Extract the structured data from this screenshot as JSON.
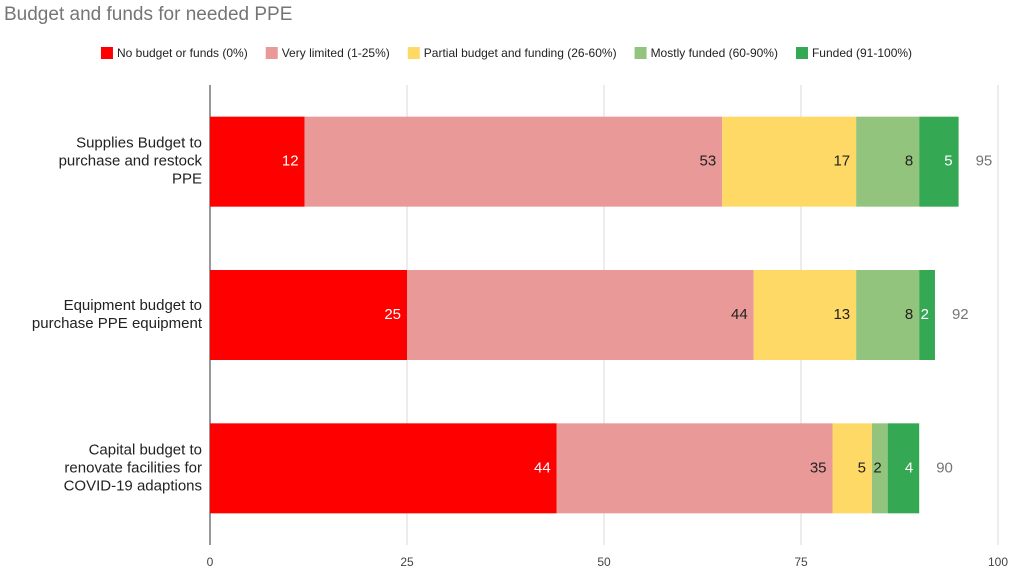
{
  "chart_data": {
    "type": "stacked_bar_horizontal",
    "title": "Budget and funds for needed PPE",
    "categories": [
      [
        "Supplies Budget to",
        "purchase and restock",
        "PPE"
      ],
      [
        "Equipment budget to",
        "purchase PPE equipment"
      ],
      [
        "Capital budget to",
        "renovate facilities for",
        "COVID-19 adaptions"
      ]
    ],
    "series": [
      {
        "name": "No budget or funds (0%)",
        "color": "#ff0000",
        "values": [
          12,
          25,
          44
        ]
      },
      {
        "name": "Very limited (1-25%)",
        "color": "#ea9999",
        "values": [
          53,
          44,
          35
        ]
      },
      {
        "name": "Partial budget and funding (26-60%)",
        "color": "#ffd966",
        "values": [
          17,
          13,
          5
        ]
      },
      {
        "name": "Mostly funded (60-90%)",
        "color": "#93c47d",
        "values": [
          8,
          8,
          2
        ]
      },
      {
        "name": "Funded (91-100%)",
        "color": "#34a853",
        "values": [
          5,
          2,
          4
        ]
      }
    ],
    "totals": [
      95,
      92,
      90
    ],
    "xlim": [
      0,
      100
    ],
    "xticks": [
      0,
      25,
      50,
      75,
      100
    ],
    "grid": true,
    "legend": "top"
  }
}
